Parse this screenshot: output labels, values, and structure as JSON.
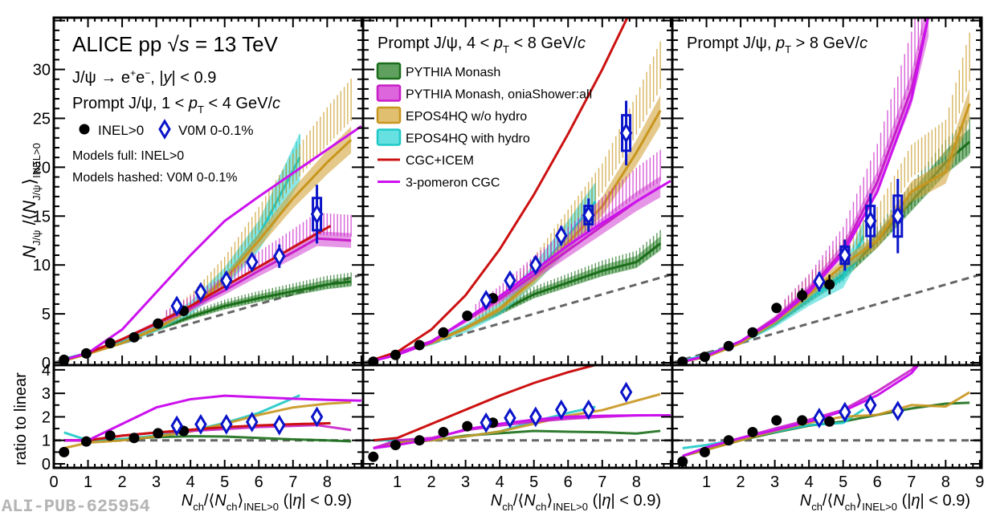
{
  "chart_data": {
    "type": "line",
    "title": "ALICE pp √s = 13 TeV",
    "watermark": "ALI-PUB-625954",
    "ylabel_upper": "N_J/ψ / ⟨N_J/ψ⟩_INEL>0",
    "ylabel_lower": "ratio to linear",
    "xlabel": "N_ch/⟨N_ch⟩_INEL>0 (|η| < 0.9)",
    "xlim": [
      0,
      9
    ],
    "ylim_upper": [
      0,
      35
    ],
    "ylim_lower": [
      0,
      4.2
    ],
    "xticks": [
      0,
      1,
      2,
      3,
      4,
      5,
      6,
      7,
      8,
      9
    ],
    "yticks_upper": [
      0,
      5,
      10,
      15,
      20,
      25,
      30
    ],
    "yticks_lower": [
      0,
      1,
      2,
      3,
      4
    ],
    "grid": false,
    "info_text": {
      "line1": "ALICE pp",
      "sqrt_s": "√s",
      "energy": "= 13 TeV",
      "decay": "J/ψ → e⁺e⁻, |y| < 0.9",
      "bin1": "Prompt J/ψ, 1 < pT < 4 GeV/c",
      "marker_inel": "INEL>0",
      "marker_v0m": "V0M 0-0.1%",
      "models_full": "Models full: INEL>0",
      "models_hashed": "Models hashed: V0M 0-0.1%"
    },
    "legend": {
      "placement": "top-left of middle panel",
      "entries": [
        {
          "label": "PYTHIA Monash",
          "color": "#1a6e1a",
          "fill": "#5fa05f",
          "kind": "band"
        },
        {
          "label": "PYTHIA Monash, oniaShower:all",
          "color": "#c81ec8",
          "fill": "#dd66dd",
          "kind": "band"
        },
        {
          "label": "EPOS4HQ w/o hydro",
          "color": "#c8961e",
          "fill": "#e0c070",
          "kind": "band"
        },
        {
          "label": "EPOS4HQ with hydro",
          "color": "#1ec8c8",
          "fill": "#66e0e0",
          "kind": "band"
        },
        {
          "label": "CGC+ICEM",
          "color": "#cc1111",
          "kind": "line"
        },
        {
          "label": "3-pomeron CGC",
          "color": "#cc11ee",
          "kind": "line"
        }
      ]
    },
    "panels": [
      {
        "title": "Prompt J/ψ, 1 < pT < 4 GeV/c",
        "inel": {
          "x": [
            0.3,
            0.95,
            1.65,
            2.35,
            3.05,
            3.8
          ],
          "y": [
            0.3,
            0.95,
            2.0,
            2.6,
            4.0,
            5.3
          ],
          "ratio": [
            0.5,
            0.95,
            1.2,
            1.1,
            1.3,
            1.4
          ]
        },
        "v0m": {
          "x": [
            3.6,
            4.3,
            5.05,
            5.8,
            6.6,
            7.7
          ],
          "y": [
            5.8,
            7.2,
            8.4,
            10.3,
            10.9,
            15.2
          ],
          "yerr": [
            0.6,
            0.6,
            0.6,
            0.9,
            1.2,
            3.0
          ],
          "ratio": [
            1.62,
            1.68,
            1.68,
            1.78,
            1.65,
            2.0
          ]
        },
        "models": {
          "pythia": {
            "x": [
              0.3,
              1,
              2,
              3,
              4,
              5,
              6,
              7,
              8,
              8.7
            ],
            "y": [
              0.3,
              1.0,
              2.1,
              3.4,
              4.7,
              5.8,
              6.6,
              7.3,
              8.0,
              8.3
            ]
          },
          "pythia_onia": {
            "x": [
              0.3,
              1,
              2,
              3,
              4,
              5,
              6,
              7,
              7.7,
              8.7
            ],
            "y": [
              0.3,
              1.0,
              2.4,
              4.0,
              5.6,
              7.4,
              9.4,
              11.3,
              12.7,
              12.5
            ]
          },
          "epos_nohydro": {
            "x": [
              0.3,
              1,
              2,
              3,
              4,
              5,
              6,
              7,
              8,
              8.7
            ],
            "y": [
              0.2,
              0.9,
              2.0,
              3.5,
              5.5,
              8.5,
              12.5,
              16.8,
              20.5,
              22.8
            ]
          },
          "epos_hydro": {
            "x": [
              0.3,
              1,
              2,
              3,
              4,
              5,
              6,
              7.2
            ],
            "y": [
              0.4,
              1.0,
              2.1,
              3.6,
              5.6,
              8.7,
              13.0,
              21.0
            ]
          },
          "cgc_icem": {
            "x": [
              0.3,
              1,
              2,
              3,
              4,
              5,
              6,
              7,
              8.1
            ],
            "y": [
              0.3,
              1.0,
              2.4,
              4.0,
              5.8,
              7.8,
              9.8,
              11.8,
              14.0
            ]
          },
          "pomeron": {
            "x": [
              0.3,
              1,
              2,
              3,
              4,
              5,
              6,
              7,
              8,
              9
            ],
            "y": [
              0.3,
              1.0,
              3.4,
              7.2,
              11.0,
              14.5,
              17.0,
              19.4,
              21.8,
              24.2
            ]
          },
          "linear": {
            "x": [
              0,
              9
            ],
            "y": [
              0,
              9
            ]
          }
        }
      },
      {
        "title": "Prompt J/ψ, 4 < pT < 8 GeV/c",
        "inel": {
          "x": [
            0.3,
            0.95,
            1.65,
            2.35,
            3.05,
            3.8
          ],
          "y": [
            0.1,
            0.8,
            1.8,
            3.1,
            4.8,
            6.6
          ],
          "ratio": [
            0.3,
            0.8,
            1.0,
            1.35,
            1.6,
            1.75
          ]
        },
        "v0m": {
          "x": [
            3.6,
            4.3,
            5.05,
            5.8,
            6.6,
            7.7
          ],
          "y": [
            6.4,
            8.4,
            10.0,
            13.0,
            15.1,
            23.5
          ],
          "yerr": [
            0.7,
            0.7,
            0.8,
            1.0,
            1.7,
            3.3
          ],
          "ratio": [
            1.75,
            1.95,
            2.0,
            2.3,
            2.3,
            3.05
          ]
        },
        "models": {
          "pythia": {
            "x": [
              0.3,
              1,
              2,
              3,
              4,
              5,
              6,
              7,
              8,
              8.7
            ],
            "y": [
              0.2,
              0.9,
              2.0,
              3.6,
              5.2,
              7.0,
              8.2,
              9.4,
              10.3,
              12.2
            ]
          },
          "pythia_onia": {
            "x": [
              0.3,
              1,
              2,
              3,
              4,
              5,
              6,
              7,
              8,
              8.7
            ],
            "y": [
              0.2,
              1.0,
              2.2,
              4.3,
              6.5,
              9.0,
              11.5,
              14.0,
              16.5,
              18.0
            ]
          },
          "epos_nohydro": {
            "x": [
              0.3,
              1,
              2,
              3,
              4,
              5,
              6,
              7,
              8,
              8.7
            ],
            "y": [
              0.2,
              0.9,
              2.0,
              3.5,
              5.5,
              8.5,
              12.3,
              16.0,
              21.5,
              25.8
            ]
          },
          "epos_hydro": {
            "x": [
              0.3,
              1,
              2,
              3,
              4,
              5,
              6,
              6.8
            ],
            "y": [
              0.3,
              1.0,
              2.0,
              3.5,
              5.5,
              9.0,
              13.0,
              16.5
            ]
          },
          "cgc_icem": {
            "x": [
              0.3,
              1,
              2,
              3,
              4,
              5,
              6,
              7,
              7.9
            ],
            "y": [
              0.3,
              1.1,
              3.4,
              6.9,
              11.6,
              17.2,
              23.4,
              30.0,
              36.5
            ]
          },
          "pomeron": {
            "x": [
              0.3,
              1,
              2,
              3,
              4,
              5,
              6,
              7,
              8,
              9
            ],
            "y": [
              0.2,
              0.8,
              2.1,
              4.4,
              6.8,
              9.4,
              12.0,
              14.3,
              16.5,
              18.6
            ]
          },
          "linear": {
            "x": [
              0,
              9
            ],
            "y": [
              0,
              9
            ]
          }
        }
      },
      {
        "title": "Prompt J/ψ, pT > 8 GeV/c",
        "inel": {
          "x": [
            0.3,
            0.95,
            1.65,
            2.35,
            3.05,
            3.8,
            4.6
          ],
          "y": [
            0.1,
            0.6,
            1.7,
            3.1,
            5.6,
            6.9,
            8.0
          ],
          "yerr": [
            0.2,
            0.3,
            0.3,
            0.4,
            0.5,
            0.7,
            1.0
          ],
          "ratio": [
            0.1,
            0.5,
            1.0,
            1.35,
            1.85,
            1.85,
            1.8
          ]
        },
        "v0m": {
          "x": [
            4.3,
            5.05,
            5.8,
            6.6
          ],
          "y": [
            8.3,
            11.0,
            14.5,
            15.0
          ],
          "yerr": [
            1.0,
            1.6,
            2.8,
            3.8
          ],
          "ratio": [
            1.95,
            2.2,
            2.5,
            2.25
          ]
        },
        "models": {
          "pythia": {
            "x": [
              0.3,
              1,
              2,
              3,
              4,
              5,
              6,
              7,
              8,
              8.7
            ],
            "y": [
              0.1,
              0.6,
              2.0,
              4.0,
              6.5,
              9.0,
              12.5,
              16.5,
              20.5,
              22.6
            ]
          },
          "pythia_onia": {
            "x": [
              0.3,
              1,
              2,
              3,
              4,
              5,
              6,
              7,
              7.5
            ],
            "y": [
              0.1,
              0.7,
              2.2,
              4.5,
              7.5,
              11.5,
              18.5,
              28.0,
              35.5
            ]
          },
          "epos_nohydro": {
            "x": [
              0.3,
              1,
              2,
              3,
              4,
              5,
              6,
              7,
              8,
              8.7
            ],
            "y": [
              0.1,
              0.6,
              2.0,
              4.2,
              7.0,
              10.0,
              12.5,
              17.5,
              19.5,
              26.5
            ]
          },
          "epos_hydro": {
            "x": [
              0.3,
              1,
              2,
              3,
              4,
              5,
              5.6
            ],
            "y": [
              0.2,
              0.8,
              2.1,
              4.1,
              6.6,
              8.7,
              13.0
            ]
          },
          "pomeron": {
            "x": [
              0.3,
              1,
              2,
              3,
              4,
              5,
              6,
              7,
              7.5
            ],
            "y": [
              0.1,
              0.7,
              2.2,
              4.3,
              7.2,
              11.2,
              17.5,
              27.0,
              35.5
            ]
          },
          "linear": {
            "x": [
              0,
              9
            ],
            "y": [
              0,
              9
            ]
          }
        }
      }
    ]
  }
}
